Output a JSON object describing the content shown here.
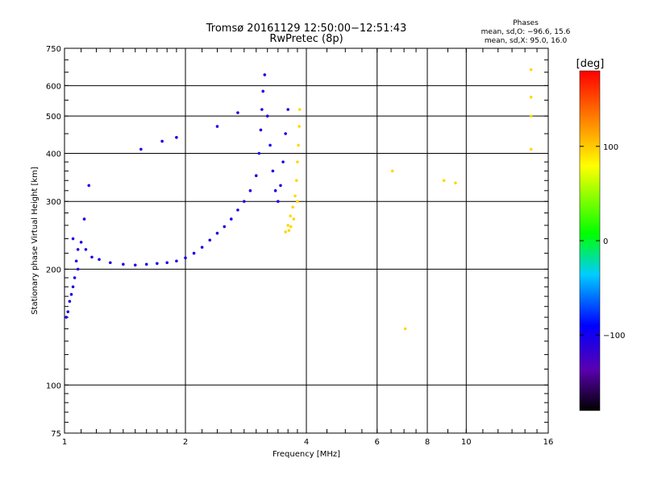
{
  "chart_data": {
    "type": "scatter",
    "title": "Tromsø 20161129 12:50:00−12:51:43",
    "subtitle": "RwPretec (8p)",
    "stats": {
      "heading": "Phases",
      "line1": "mean, sd,O: −96.6, 15.6",
      "line2": "mean, sd,X:  95.0, 16.0"
    },
    "xlabel": "Frequency [MHz]",
    "ylabel": "Stationary phase Virtual Height [km]",
    "x_scale": "log2",
    "y_scale": "log",
    "xlim": [
      1,
      16
    ],
    "ylim": [
      75,
      750
    ],
    "x_ticks": [
      1,
      2,
      4,
      6,
      8,
      10,
      16
    ],
    "x_tick_labels": [
      "1",
      "2",
      "4",
      "6",
      "8",
      "10",
      "16"
    ],
    "y_ticks": [
      75,
      100,
      200,
      300,
      400,
      500,
      600,
      750
    ],
    "y_tick_labels": [
      "75",
      "100",
      "200",
      "300",
      "400",
      "500",
      "600",
      "750"
    ],
    "colorbar": {
      "label": "[deg]",
      "range": [
        -180,
        180
      ],
      "ticks": [
        100,
        0,
        -100
      ],
      "tick_labels": [
        "100",
        "0",
        "−100"
      ]
    },
    "grid": true,
    "series": [
      {
        "points": [
          [
            1.01,
            150
          ],
          [
            1.02,
            155
          ],
          [
            1.03,
            165
          ],
          [
            1.04,
            172
          ],
          [
            1.05,
            180
          ],
          [
            1.06,
            190
          ],
          [
            1.07,
            210
          ],
          [
            1.08,
            225
          ],
          [
            1.1,
            235
          ],
          [
            1.13,
            225
          ],
          [
            1.17,
            215
          ],
          [
            1.22,
            212
          ],
          [
            1.3,
            208
          ],
          [
            1.4,
            206
          ],
          [
            1.5,
            205
          ],
          [
            1.6,
            206
          ],
          [
            1.7,
            207
          ],
          [
            1.8,
            208
          ],
          [
            1.9,
            210
          ],
          [
            2.0,
            214
          ],
          [
            2.1,
            220
          ],
          [
            2.2,
            228
          ],
          [
            2.3,
            238
          ],
          [
            2.4,
            248
          ],
          [
            2.5,
            258
          ],
          [
            2.6,
            270
          ],
          [
            2.7,
            285
          ],
          [
            2.8,
            300
          ],
          [
            2.9,
            320
          ],
          [
            3.0,
            350
          ],
          [
            3.05,
            400
          ],
          [
            3.08,
            460
          ],
          [
            3.1,
            520
          ],
          [
            3.12,
            580
          ],
          [
            3.15,
            640
          ],
          [
            3.2,
            500
          ],
          [
            3.25,
            420
          ],
          [
            3.3,
            360
          ],
          [
            3.35,
            320
          ],
          [
            3.4,
            300
          ],
          [
            3.45,
            330
          ],
          [
            3.5,
            380
          ],
          [
            3.55,
            450
          ],
          [
            3.6,
            520
          ],
          [
            1.15,
            330
          ],
          [
            1.12,
            270
          ],
          [
            1.55,
            410
          ],
          [
            1.75,
            430
          ],
          [
            1.9,
            440
          ],
          [
            2.4,
            470
          ],
          [
            2.7,
            510
          ],
          [
            1.05,
            240
          ],
          [
            1.08,
            200
          ]
        ],
        "phase": -105
      },
      {
        "points": [
          [
            3.55,
            250
          ],
          [
            3.6,
            260
          ],
          [
            3.65,
            275
          ],
          [
            3.7,
            290
          ],
          [
            3.75,
            310
          ],
          [
            3.78,
            340
          ],
          [
            3.8,
            380
          ],
          [
            3.82,
            420
          ],
          [
            3.84,
            470
          ],
          [
            3.85,
            520
          ],
          [
            3.8,
            300
          ],
          [
            3.72,
            270
          ],
          [
            3.66,
            258
          ],
          [
            3.62,
            252
          ],
          [
            6.55,
            360
          ],
          [
            7.05,
            140
          ],
          [
            14.5,
            660
          ],
          [
            14.5,
            560
          ],
          [
            14.5,
            500
          ],
          [
            14.5,
            410
          ],
          [
            8.8,
            340
          ],
          [
            9.4,
            335
          ]
        ],
        "phase": 95
      }
    ]
  }
}
